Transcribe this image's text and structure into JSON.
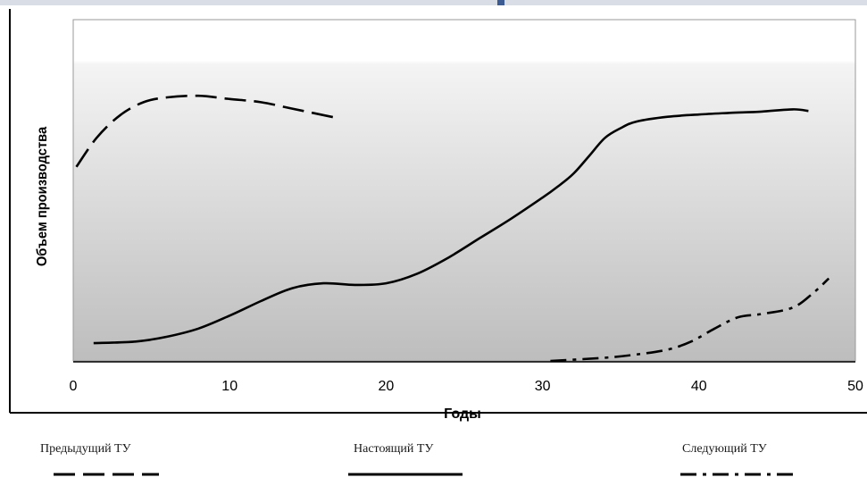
{
  "chart_data": {
    "type": "line",
    "title": "",
    "xlabel": "Годы",
    "ylabel": "Объем производства",
    "xlim": [
      0,
      50
    ],
    "xticks": [
      0,
      10,
      20,
      30,
      40,
      50
    ],
    "ylim": [
      0,
      100
    ],
    "y_ticks_shown": false,
    "grid": false,
    "background": "vertical gradient, white at top to gray at bottom",
    "legend_position": "bottom",
    "series": [
      {
        "name": "Предыдущий ТУ",
        "style": "dashed",
        "x": [
          0.2,
          1.5,
          3,
          4.5,
          6,
          8,
          10,
          12,
          14,
          17
        ],
        "y": [
          60,
          69,
          76,
          80,
          81.5,
          82,
          81,
          80,
          78,
          75
        ]
      },
      {
        "name": "Настоящий ТУ",
        "style": "solid",
        "x": [
          1.3,
          4,
          6,
          8,
          10,
          12,
          14,
          16,
          18,
          20,
          22,
          24,
          26,
          28,
          30,
          31,
          32,
          33,
          34,
          35,
          36,
          38,
          40,
          42,
          44,
          46,
          47
        ],
        "y": [
          5.5,
          6,
          7.5,
          10,
          14,
          18.5,
          22.5,
          24,
          23.5,
          24,
          27,
          32,
          38,
          44,
          50.5,
          54,
          58,
          63.5,
          69,
          72,
          74,
          75.5,
          76.2,
          76.7,
          77.1,
          77.8,
          77.3
        ]
      },
      {
        "name": "Следующий ТУ",
        "style": "dash-dot",
        "x": [
          30.5,
          34,
          36,
          38,
          39.5,
          41,
          42.5,
          44,
          46,
          47.3,
          48.3
        ],
        "y": [
          0,
          1,
          2,
          3.5,
          6,
          10,
          13.5,
          14.5,
          16.5,
          21,
          25.5
        ]
      }
    ]
  },
  "legend": {
    "prev_label": "Предыдущий ТУ",
    "current_label": "Настоящий ТУ",
    "next_label": "Следующий ТУ"
  }
}
